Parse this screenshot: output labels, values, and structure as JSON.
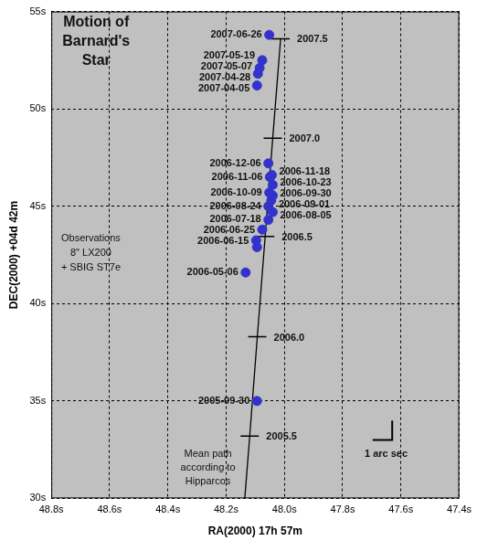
{
  "chart_data": {
    "type": "scatter",
    "title": "Motion of\nBarnard's\nStar",
    "x_label": "RA(2000) 17h 57m",
    "y_label": "DEC(2000) +04d 42m",
    "xlim": [
      48.8,
      47.4
    ],
    "xticks": [
      {
        "value": 48.8,
        "label": "48.8s"
      },
      {
        "value": 48.6,
        "label": "48.6s"
      },
      {
        "value": 48.4,
        "label": "48.4s"
      },
      {
        "value": 48.2,
        "label": "48.2s"
      },
      {
        "value": 48.0,
        "label": "48.0s"
      },
      {
        "value": 47.8,
        "label": "47.8s"
      },
      {
        "value": 47.6,
        "label": "47.6s"
      },
      {
        "value": 47.4,
        "label": "47.4s"
      }
    ],
    "ylim": [
      30,
      55
    ],
    "yticks": [
      {
        "value": 30,
        "label": "30s"
      },
      {
        "value": 35,
        "label": "35s"
      },
      {
        "value": 40,
        "label": "40s"
      },
      {
        "value": 45,
        "label": "45s"
      },
      {
        "value": 50,
        "label": "50s"
      },
      {
        "value": 55,
        "label": "55s"
      }
    ],
    "grid": true,
    "series": [
      {
        "name": "Observations\n8\" LX200\n+ SBIG ST7e",
        "type": "scatter",
        "color": "#3333cc",
        "marker": "circle",
        "x": [
          48.052,
          48.076,
          48.085,
          48.091,
          48.094,
          48.055,
          48.043,
          48.05,
          48.04,
          48.052,
          48.04,
          48.045,
          48.055,
          48.04,
          48.055,
          48.076,
          48.097,
          48.094,
          48.133,
          48.094
        ],
        "y": [
          53.8,
          52.5,
          52.1,
          51.8,
          51.2,
          47.2,
          46.6,
          46.5,
          46.1,
          45.7,
          45.55,
          45.3,
          45.0,
          44.7,
          44.3,
          43.8,
          43.25,
          42.9,
          41.6,
          35.0
        ],
        "point_labels": [
          "2007-06-26",
          "2007-05-19",
          "2007-05-07",
          "2007-04-28",
          "2007-04-05",
          "2006-12-06",
          "2006-11-18",
          "2006-11-06",
          "2006-10-23",
          "2006-10-09",
          "2006-09-30",
          "2006-09-01",
          "2006-08-24",
          "2006-08-05",
          "2006-07-18",
          "2006-06-25",
          "2006-06-15",
          null,
          "2006-05-06",
          "2005-09-30"
        ]
      },
      {
        "name": "Mean path\naccording to\nHipparcos",
        "type": "line",
        "color": "#000000",
        "line_style": "solid",
        "marker": "line",
        "x": [
          48.136,
          48.119,
          48.093,
          48.066,
          48.04,
          48.013
        ],
        "y": [
          30,
          33.2,
          38.3,
          43.45,
          48.5,
          53.6
        ],
        "point_labels": [
          null,
          "2005.5",
          "2006.0",
          "2006.5",
          "2007.0",
          "2007.5"
        ]
      }
    ],
    "scale_bar": {
      "label": "1 arc sec",
      "x": 47.63,
      "y": 33.0,
      "dx": 0.067,
      "dy": 1
    }
  }
}
